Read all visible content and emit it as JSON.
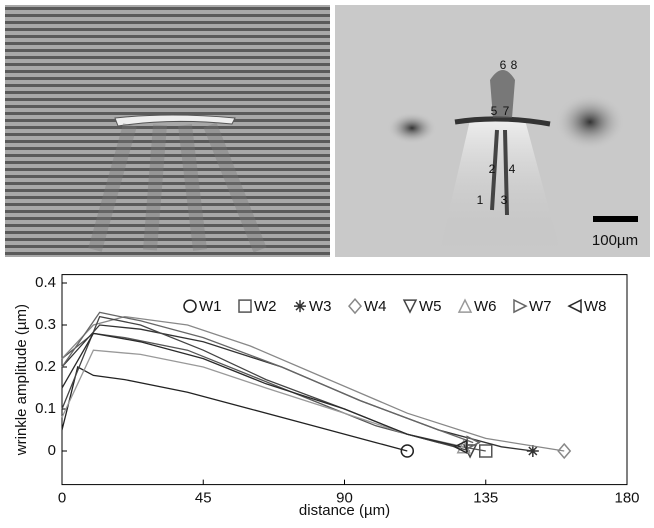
{
  "panels": {
    "right_labels": [
      "6",
      "8",
      "5",
      "7",
      "2",
      "4",
      "1",
      "3"
    ],
    "scale_bar": "100µm"
  },
  "chart_data": {
    "type": "line",
    "xlabel": "distance (µm)",
    "ylabel": "wrinkle amplitude (µm)",
    "xlim": [
      0,
      180
    ],
    "xticks": [
      0,
      45,
      90,
      135,
      180
    ],
    "ylim": [
      -0.08,
      0.42
    ],
    "yticks": [
      0,
      0.1,
      0.2,
      0.3,
      0.4
    ],
    "legend": "top-right",
    "series": [
      {
        "name": "W1",
        "color": "#222222",
        "marker": "circle",
        "x": [
          0,
          5,
          10,
          20,
          40,
          60,
          80,
          100,
          110
        ],
        "values": [
          0.05,
          0.2,
          0.18,
          0.17,
          0.14,
          0.1,
          0.06,
          0.02,
          0
        ]
      },
      {
        "name": "W2",
        "color": "#555555",
        "marker": "square",
        "x": [
          0,
          10,
          20,
          40,
          60,
          80,
          100,
          120,
          135
        ],
        "values": [
          0.22,
          0.28,
          0.27,
          0.24,
          0.18,
          0.12,
          0.06,
          0.02,
          0
        ]
      },
      {
        "name": "W3",
        "color": "#333333",
        "marker": "star",
        "x": [
          0,
          12,
          25,
          45,
          70,
          95,
          120,
          140,
          150
        ],
        "values": [
          0.2,
          0.3,
          0.29,
          0.26,
          0.2,
          0.12,
          0.05,
          0.01,
          0
        ]
      },
      {
        "name": "W4",
        "color": "#888888",
        "marker": "diamond",
        "x": [
          0,
          10,
          20,
          40,
          60,
          85,
          110,
          135,
          160
        ],
        "values": [
          0.22,
          0.3,
          0.32,
          0.3,
          0.25,
          0.17,
          0.09,
          0.03,
          0
        ]
      },
      {
        "name": "W5",
        "color": "#444444",
        "marker": "triangle-down",
        "x": [
          0,
          12,
          25,
          45,
          65,
          90,
          110,
          125,
          130
        ],
        "values": [
          0.1,
          0.32,
          0.3,
          0.24,
          0.17,
          0.1,
          0.04,
          0.01,
          0
        ]
      },
      {
        "name": "W6",
        "color": "#999999",
        "marker": "triangle-up",
        "x": [
          0,
          10,
          25,
          45,
          65,
          90,
          110,
          128
        ],
        "values": [
          0.08,
          0.24,
          0.23,
          0.2,
          0.15,
          0.09,
          0.04,
          0.01
        ]
      },
      {
        "name": "W7",
        "color": "#666666",
        "marker": "triangle-right",
        "x": [
          0,
          12,
          25,
          45,
          70,
          95,
          120,
          131
        ],
        "values": [
          0.2,
          0.33,
          0.31,
          0.27,
          0.2,
          0.12,
          0.05,
          0.02
        ]
      },
      {
        "name": "W8",
        "color": "#2a2a2a",
        "marker": "triangle-left",
        "x": [
          0,
          10,
          25,
          45,
          65,
          90,
          110,
          127
        ],
        "values": [
          0.15,
          0.28,
          0.26,
          0.22,
          0.16,
          0.1,
          0.04,
          0.01
        ]
      }
    ]
  }
}
